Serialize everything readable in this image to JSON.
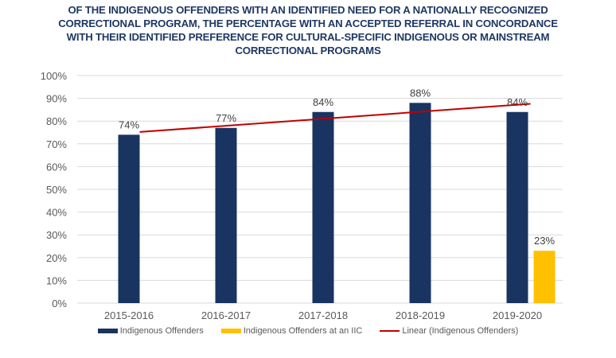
{
  "chart_data": {
    "type": "bar",
    "title_lines": [
      "OF THE INDIGENOUS OFFENDERS WITH AN IDENTIFIED NEED FOR A NATIONALLY RECOGNIZED",
      "CORRECTIONAL PROGRAM, THE PERCENTAGE WITH AN ACCEPTED REFERRAL IN CONCORDANCE",
      "WITH THEIR IDENTIFIED PREFERENCE FOR CULTURAL-SPECIFIC INDIGENOUS OR MAINSTREAM",
      "CORRECTIONAL PROGRAMS"
    ],
    "categories": [
      "2015-2016",
      "2016-2017",
      "2017-2018",
      "2018-2019",
      "2019-2020"
    ],
    "series": [
      {
        "name": "Indigenous Offenders",
        "color": "#1a3461",
        "values": [
          74,
          77,
          84,
          88,
          84
        ],
        "labels": [
          "74%",
          "77%",
          "84%",
          "88%",
          "84%"
        ]
      },
      {
        "name": "Indigenous Offenders at an IIC",
        "color": "#ffc000",
        "values": [
          null,
          null,
          null,
          null,
          23
        ],
        "labels": [
          null,
          null,
          null,
          null,
          "23%"
        ]
      }
    ],
    "trendline": {
      "name": "Linear (Indigenous Offenders)",
      "type": "linear",
      "of_series": "Indigenous Offenders",
      "color": "#c00000"
    },
    "xlabel": "",
    "ylabel": "",
    "ylim": [
      0,
      100
    ],
    "yticks": [
      "0%",
      "10%",
      "20%",
      "30%",
      "40%",
      "50%",
      "60%",
      "70%",
      "80%",
      "90%",
      "100%"
    ],
    "grid": true,
    "legend_position": "bottom"
  }
}
